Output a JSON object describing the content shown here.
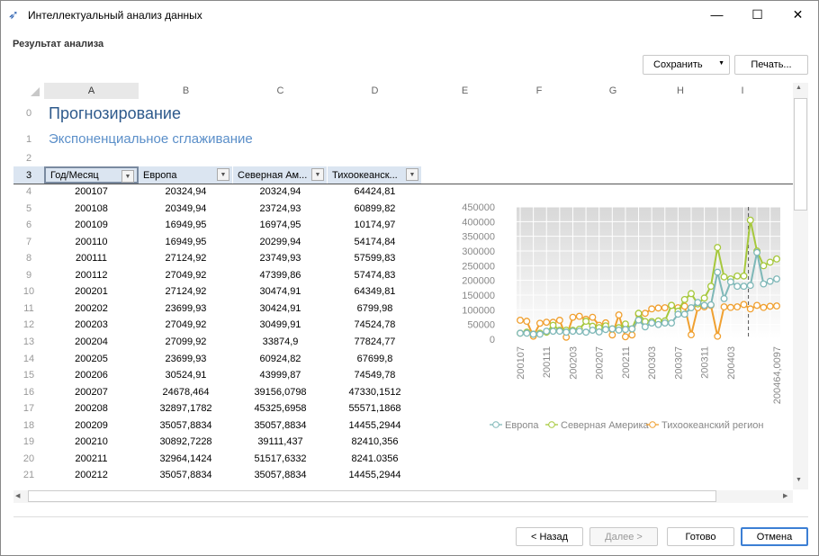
{
  "window": {
    "title": "Интеллектуальный анализ данных",
    "minimize": "—",
    "maximize": "☐",
    "close": "✕"
  },
  "page": {
    "heading": "Результат анализа"
  },
  "toolbar": {
    "save_label": "Сохранить",
    "print_label": "Печать..."
  },
  "sheet": {
    "columns": [
      "A",
      "B",
      "C",
      "D",
      "E",
      "F",
      "G",
      "H",
      "I"
    ],
    "title_row": {
      "num": "0",
      "text": "Прогнозирование"
    },
    "subtitle_row": {
      "num": "1",
      "text": "Экспоненциальное сглаживание"
    },
    "empty_row": {
      "num": "2"
    },
    "header_row": {
      "num": "3",
      "cells": [
        "Год/Месяц",
        "Европа",
        "Северная Ам...",
        "Тихоокеанск..."
      ]
    },
    "rows": [
      [
        "4",
        "200107",
        "20324,94",
        "20324,94",
        "64424,81"
      ],
      [
        "5",
        "200108",
        "20349,94",
        "23724,93",
        "60899,82"
      ],
      [
        "6",
        "200109",
        "16949,95",
        "16974,95",
        "10174,97"
      ],
      [
        "7",
        "200110",
        "16949,95",
        "20299,94",
        "54174,84"
      ],
      [
        "8",
        "200111",
        "27124,92",
        "23749,93",
        "57599,83"
      ],
      [
        "9",
        "200112",
        "27049,92",
        "47399,86",
        "57474,83"
      ],
      [
        "10",
        "200201",
        "27124,92",
        "30474,91",
        "64349,81"
      ],
      [
        "11",
        "200202",
        "23699,93",
        "30424,91",
        "6799,98"
      ],
      [
        "12",
        "200203",
        "27049,92",
        "30499,91",
        "74524,78"
      ],
      [
        "13",
        "200204",
        "27099,92",
        "33874,9",
        "77824,77"
      ],
      [
        "14",
        "200205",
        "23699,93",
        "60924,82",
        "67699,8"
      ],
      [
        "15",
        "200206",
        "30524,91",
        "43999,87",
        "74549,78"
      ],
      [
        "16",
        "200207",
        "24678,464",
        "39156,0798",
        "47330,1512"
      ],
      [
        "17",
        "200208",
        "32897,1782",
        "45325,6958",
        "55571,1868"
      ],
      [
        "18",
        "200209",
        "35057,8834",
        "35057,8834",
        "14455,2944"
      ],
      [
        "19",
        "200210",
        "30892,7228",
        "39111,437",
        "82410,356"
      ],
      [
        "20",
        "200211",
        "32964,1424",
        "51517,6332",
        "8241.0356"
      ],
      [
        "21",
        "200212",
        "35057,8834",
        "35057,8834",
        "14455,2944"
      ]
    ]
  },
  "chart_data": {
    "type": "line",
    "y_ticks": [
      "0",
      "50000",
      "100000",
      "150000",
      "200000",
      "250000",
      "300000",
      "350000",
      "400000",
      "450000"
    ],
    "ylim": [
      0,
      450000
    ],
    "x_tick_labels": [
      "200107",
      "200111",
      "200203",
      "200207",
      "200211",
      "200303",
      "200307",
      "200311",
      "200403",
      "200464,0097"
    ],
    "grid": true,
    "legend_position": "bottom",
    "series": [
      {
        "name": "Европа",
        "color": "#7fb8b8",
        "values": [
          20325,
          20350,
          16950,
          16950,
          27125,
          27050,
          27125,
          23700,
          27050,
          27100,
          23700,
          30525,
          24678,
          32897,
          35058,
          30893,
          32964,
          35058,
          65000,
          42000,
          55000,
          50000,
          55000,
          55000,
          85000,
          85000,
          107000,
          125000,
          115000,
          117000,
          228000,
          138000,
          195000,
          180000,
          180000,
          183000,
          295000,
          188000,
          197000,
          205000
        ]
      },
      {
        "name": "Северная Америка",
        "color": "#a6c83c",
        "values": [
          20325,
          23725,
          16975,
          20300,
          23750,
          47400,
          30475,
          30425,
          30500,
          33875,
          60925,
          44000,
          39156,
          45326,
          35058,
          39111,
          51518,
          35058,
          88000,
          60000,
          60000,
          62000,
          62000,
          115000,
          95000,
          135000,
          155000,
          120000,
          140000,
          180000,
          312000,
          212000,
          205000,
          215000,
          215000,
          405000,
          300000,
          250000,
          262000,
          273000
        ]
      },
      {
        "name": "Тихоокеанский регион",
        "color": "#f0a030",
        "values": [
          64425,
          60900,
          10175,
          54175,
          57600,
          57475,
          64350,
          6800,
          74525,
          77825,
          67700,
          74550,
          47330,
          55571,
          14455,
          82410,
          8241,
          14455,
          85000,
          88000,
          103000,
          106000,
          107000,
          115000,
          107000,
          112000,
          15000,
          107000,
          110000,
          115000,
          10000,
          110000,
          108000,
          110000,
          118000,
          103000,
          115000,
          108000,
          112000,
          113000
        ]
      }
    ]
  },
  "footer": {
    "back_label": "< Назад",
    "next_label": "Далее >",
    "done_label": "Готово",
    "cancel_label": "Отмена"
  }
}
